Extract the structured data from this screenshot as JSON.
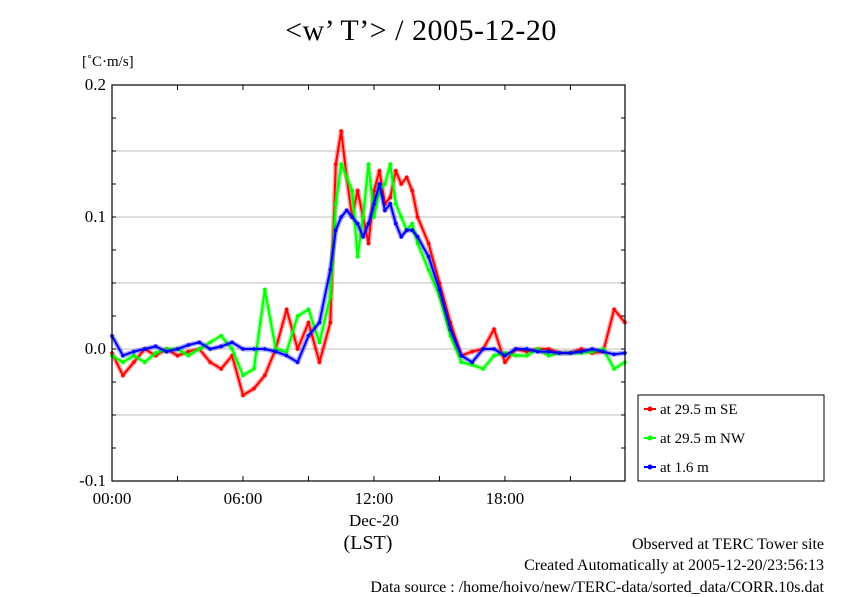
{
  "chart_data": {
    "type": "line",
    "title": "<w’ T’> / 2005-12-20",
    "ylabel": "[˚C·m/s]",
    "xlabel": "(LST)",
    "x_date_label": "Dec-20",
    "xlim_hours": [
      0,
      23.5
    ],
    "ylim": [
      -0.1,
      0.2
    ],
    "x_ticks": [
      "00:00",
      "06:00",
      "12:00",
      "18:00"
    ],
    "y_ticks": [
      "-0.1",
      "0.0",
      "0.1",
      "0.2"
    ],
    "grid": "horizontal",
    "legend_position": "bottom-right-outside",
    "x_hours": [
      0,
      0.5,
      1,
      1.5,
      2,
      2.5,
      3,
      3.5,
      4,
      4.5,
      5,
      5.5,
      6,
      6.5,
      7,
      7.5,
      8,
      8.5,
      9,
      9.5,
      10,
      10.25,
      10.5,
      10.75,
      11,
      11.25,
      11.5,
      11.75,
      12,
      12.25,
      12.5,
      12.75,
      13,
      13.25,
      13.5,
      13.75,
      14,
      14.5,
      15,
      15.5,
      16,
      16.5,
      17,
      17.5,
      18,
      18.5,
      19,
      19.5,
      20,
      20.5,
      21,
      21.5,
      22,
      22.5,
      23,
      23.5
    ],
    "series": [
      {
        "name": "at 29.5 m SE",
        "color": "#ff0000",
        "values": [
          -0.003,
          -0.02,
          -0.01,
          0.0,
          -0.005,
          0.0,
          -0.005,
          -0.002,
          0.0,
          -0.01,
          -0.015,
          -0.005,
          -0.035,
          -0.03,
          -0.02,
          0.0,
          0.03,
          0.0,
          0.02,
          -0.01,
          0.02,
          0.14,
          0.165,
          0.13,
          0.1,
          0.12,
          0.1,
          0.08,
          0.12,
          0.135,
          0.11,
          0.115,
          0.135,
          0.125,
          0.13,
          0.12,
          0.1,
          0.08,
          0.05,
          0.02,
          -0.005,
          -0.002,
          0.0,
          0.015,
          -0.01,
          0.0,
          -0.002,
          0.0,
          0.0,
          -0.003,
          -0.003,
          0.0,
          -0.003,
          -0.002,
          0.03,
          0.02
        ]
      },
      {
        "name": "at 29.5 m NW",
        "color": "#00ff00",
        "values": [
          -0.005,
          -0.01,
          -0.005,
          -0.01,
          -0.003,
          0.0,
          0.0,
          -0.005,
          0.0,
          0.005,
          0.01,
          0.0,
          -0.02,
          -0.015,
          0.045,
          0.0,
          -0.002,
          0.025,
          0.03,
          0.005,
          0.04,
          0.11,
          0.14,
          0.13,
          0.12,
          0.07,
          0.1,
          0.14,
          0.1,
          0.12,
          0.125,
          0.14,
          0.11,
          0.1,
          0.09,
          0.095,
          0.08,
          0.06,
          0.04,
          0.01,
          -0.01,
          -0.012,
          -0.015,
          -0.005,
          -0.003,
          -0.005,
          -0.005,
          0.0,
          -0.005,
          -0.003,
          -0.003,
          -0.003,
          -0.002,
          0.0,
          -0.015,
          -0.01
        ]
      },
      {
        "name": "at 1.6 m",
        "color": "#0000ff",
        "values": [
          0.01,
          -0.005,
          -0.002,
          0.0,
          0.002,
          -0.002,
          0.0,
          0.003,
          0.005,
          0.0,
          0.002,
          0.005,
          0.0,
          0.0,
          0.0,
          -0.002,
          -0.005,
          -0.01,
          0.01,
          0.02,
          0.06,
          0.09,
          0.1,
          0.105,
          0.1,
          0.095,
          0.085,
          0.095,
          0.11,
          0.125,
          0.105,
          0.11,
          0.095,
          0.085,
          0.09,
          0.09,
          0.085,
          0.07,
          0.045,
          0.015,
          -0.005,
          -0.01,
          0.0,
          0.0,
          -0.005,
          0.0,
          0.0,
          -0.002,
          -0.002,
          -0.003,
          -0.003,
          -0.002,
          0.0,
          -0.002,
          -0.004,
          -0.003
        ]
      }
    ]
  },
  "footer": {
    "line1": "Observed at TERC Tower site",
    "line2": "Created Automatically at 2005-12-20/23:56:13",
    "line3": "Data source : /home/hoivo/new/TERC-data/sorted_data/CORR.10s.dat"
  }
}
